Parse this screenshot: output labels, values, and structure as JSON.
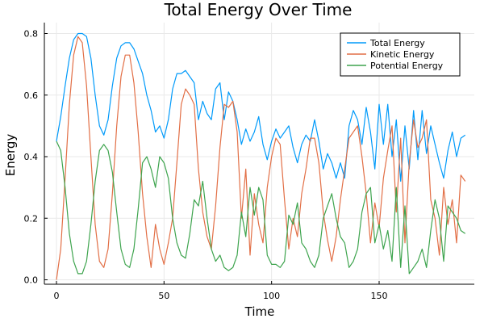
{
  "chart_data": {
    "type": "line",
    "title": "Total Energy Over Time",
    "xlabel": "Time",
    "ylabel": "Energy",
    "xlim": [
      0,
      190
    ],
    "ylim": [
      0,
      0.82
    ],
    "xticks": [
      0,
      50,
      100,
      150
    ],
    "xtick_labels": [
      "0",
      "50",
      "100",
      "150"
    ],
    "yticks": [
      0.0,
      0.2,
      0.4,
      0.6,
      0.8
    ],
    "ytick_labels": [
      "0.0",
      "0.2",
      "0.4",
      "0.6",
      "0.8"
    ],
    "grid": true,
    "legend_position": "top-right",
    "series": [
      {
        "name": "Total Energy",
        "color": "#009AFA",
        "x": [
          0,
          2,
          4,
          6,
          8,
          10,
          12,
          14,
          16,
          18,
          20,
          22,
          24,
          26,
          28,
          30,
          32,
          34,
          36,
          38,
          40,
          42,
          44,
          46,
          48,
          50,
          52,
          54,
          56,
          58,
          60,
          62,
          64,
          66,
          68,
          70,
          72,
          74,
          76,
          78,
          80,
          82,
          84,
          86,
          88,
          90,
          92,
          94,
          96,
          98,
          100,
          102,
          104,
          106,
          108,
          110,
          112,
          114,
          116,
          118,
          120,
          122,
          124,
          126,
          128,
          130,
          132,
          134,
          136,
          138,
          140,
          142,
          144,
          146,
          148,
          150,
          152,
          154,
          156,
          158,
          160,
          162,
          164,
          166,
          168,
          170,
          172,
          174,
          176,
          178,
          180,
          182,
          184,
          186,
          188,
          190
        ],
        "values": [
          0.45,
          0.53,
          0.63,
          0.72,
          0.78,
          0.8,
          0.8,
          0.79,
          0.72,
          0.6,
          0.5,
          0.47,
          0.52,
          0.63,
          0.72,
          0.76,
          0.77,
          0.77,
          0.75,
          0.71,
          0.67,
          0.6,
          0.55,
          0.48,
          0.5,
          0.46,
          0.52,
          0.62,
          0.67,
          0.67,
          0.68,
          0.66,
          0.64,
          0.52,
          0.58,
          0.54,
          0.52,
          0.62,
          0.64,
          0.52,
          0.61,
          0.58,
          0.52,
          0.44,
          0.49,
          0.45,
          0.48,
          0.53,
          0.44,
          0.39,
          0.45,
          0.49,
          0.46,
          0.48,
          0.5,
          0.43,
          0.38,
          0.44,
          0.47,
          0.45,
          0.52,
          0.45,
          0.36,
          0.41,
          0.38,
          0.33,
          0.38,
          0.33,
          0.5,
          0.55,
          0.52,
          0.44,
          0.56,
          0.48,
          0.36,
          0.57,
          0.44,
          0.57,
          0.4,
          0.52,
          0.32,
          0.5,
          0.36,
          0.55,
          0.39,
          0.55,
          0.41,
          0.5,
          0.44,
          0.38,
          0.33,
          0.42,
          0.48,
          0.4,
          0.46,
          0.47
        ]
      },
      {
        "name": "Kinetic Energy",
        "color": "#E26F46",
        "x": [
          0,
          2,
          4,
          6,
          8,
          10,
          12,
          14,
          16,
          18,
          20,
          22,
          24,
          26,
          28,
          30,
          32,
          34,
          36,
          38,
          40,
          42,
          44,
          46,
          48,
          50,
          52,
          54,
          56,
          58,
          60,
          62,
          64,
          66,
          68,
          70,
          72,
          74,
          76,
          78,
          80,
          82,
          84,
          86,
          88,
          90,
          92,
          94,
          96,
          98,
          100,
          102,
          104,
          106,
          108,
          110,
          112,
          114,
          116,
          118,
          120,
          122,
          124,
          126,
          128,
          130,
          132,
          134,
          136,
          138,
          140,
          142,
          144,
          146,
          148,
          150,
          152,
          154,
          156,
          158,
          160,
          162,
          164,
          166,
          168,
          170,
          172,
          174,
          176,
          178,
          180,
          182,
          184,
          186,
          188,
          190
        ],
        "values": [
          0.0,
          0.1,
          0.33,
          0.57,
          0.73,
          0.79,
          0.77,
          0.63,
          0.4,
          0.18,
          0.06,
          0.04,
          0.1,
          0.28,
          0.5,
          0.66,
          0.73,
          0.73,
          0.64,
          0.48,
          0.28,
          0.14,
          0.04,
          0.18,
          0.1,
          0.05,
          0.12,
          0.2,
          0.38,
          0.57,
          0.62,
          0.6,
          0.57,
          0.36,
          0.22,
          0.14,
          0.1,
          0.24,
          0.43,
          0.57,
          0.56,
          0.58,
          0.48,
          0.2,
          0.36,
          0.08,
          0.28,
          0.18,
          0.12,
          0.3,
          0.4,
          0.46,
          0.44,
          0.26,
          0.1,
          0.2,
          0.14,
          0.28,
          0.36,
          0.46,
          0.46,
          0.38,
          0.22,
          0.13,
          0.06,
          0.14,
          0.26,
          0.36,
          0.46,
          0.48,
          0.5,
          0.4,
          0.28,
          0.12,
          0.25,
          0.17,
          0.33,
          0.42,
          0.5,
          0.22,
          0.46,
          0.12,
          0.38,
          0.52,
          0.43,
          0.46,
          0.52,
          0.26,
          0.2,
          0.08,
          0.3,
          0.18,
          0.26,
          0.12,
          0.34,
          0.32
        ]
      },
      {
        "name": "Potential Energy",
        "color": "#3EA44E",
        "x": [
          0,
          2,
          4,
          6,
          8,
          10,
          12,
          14,
          16,
          18,
          20,
          22,
          24,
          26,
          28,
          30,
          32,
          34,
          36,
          38,
          40,
          42,
          44,
          46,
          48,
          50,
          52,
          54,
          56,
          58,
          60,
          62,
          64,
          66,
          68,
          70,
          72,
          74,
          76,
          78,
          80,
          82,
          84,
          86,
          88,
          90,
          92,
          94,
          96,
          98,
          100,
          102,
          104,
          106,
          108,
          110,
          112,
          114,
          116,
          118,
          120,
          122,
          124,
          126,
          128,
          130,
          132,
          134,
          136,
          138,
          140,
          142,
          144,
          146,
          148,
          150,
          152,
          154,
          156,
          158,
          160,
          162,
          164,
          166,
          168,
          170,
          172,
          174,
          176,
          178,
          180,
          182,
          184,
          186,
          188,
          190
        ],
        "values": [
          0.45,
          0.42,
          0.3,
          0.15,
          0.06,
          0.02,
          0.02,
          0.06,
          0.18,
          0.32,
          0.42,
          0.44,
          0.42,
          0.35,
          0.22,
          0.1,
          0.05,
          0.04,
          0.1,
          0.23,
          0.38,
          0.4,
          0.36,
          0.3,
          0.4,
          0.38,
          0.33,
          0.2,
          0.12,
          0.08,
          0.07,
          0.15,
          0.26,
          0.24,
          0.32,
          0.2,
          0.1,
          0.06,
          0.08,
          0.04,
          0.03,
          0.04,
          0.08,
          0.22,
          0.14,
          0.3,
          0.21,
          0.3,
          0.26,
          0.08,
          0.05,
          0.05,
          0.04,
          0.06,
          0.21,
          0.18,
          0.25,
          0.12,
          0.1,
          0.06,
          0.04,
          0.08,
          0.2,
          0.24,
          0.28,
          0.2,
          0.14,
          0.12,
          0.04,
          0.06,
          0.1,
          0.22,
          0.28,
          0.3,
          0.12,
          0.18,
          0.1,
          0.16,
          0.06,
          0.3,
          0.04,
          0.24,
          0.02,
          0.04,
          0.06,
          0.1,
          0.04,
          0.16,
          0.26,
          0.2,
          0.06,
          0.24,
          0.22,
          0.2,
          0.16,
          0.15
        ]
      }
    ]
  }
}
